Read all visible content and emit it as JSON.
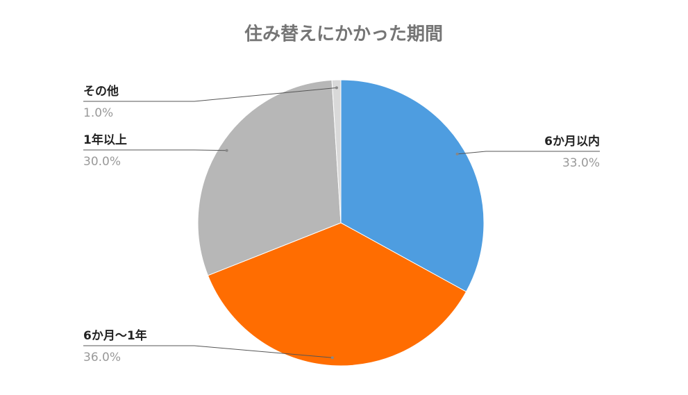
{
  "chart_data": {
    "type": "pie",
    "title": "住み替えにかかった期間",
    "categories": [
      "6か月以内",
      "6か月〜1年",
      "1年以上",
      "その他"
    ],
    "values": [
      33.0,
      36.0,
      30.0,
      1.0
    ],
    "value_labels": [
      "33.0%",
      "36.0%",
      "30.0%",
      "1.0%"
    ],
    "colors": [
      "#4e9de0",
      "#ff6d01",
      "#b7b7b7",
      "#d9d9d9"
    ]
  }
}
